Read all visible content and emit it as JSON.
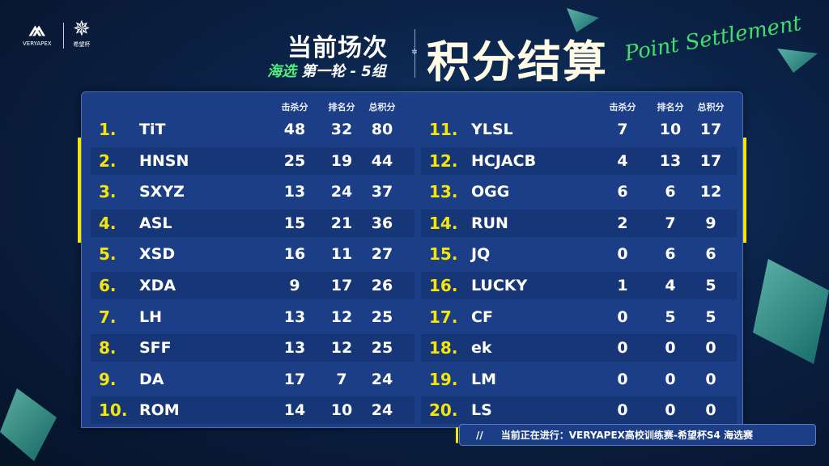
{
  "header": {
    "logo1": "VERYAPEX",
    "logo2": "希望杯",
    "title": "当前场次",
    "subtitle_green": "海选",
    "subtitle": "第一轮 - 5组",
    "main_title": "积分结算",
    "script_title": "Point Settlement"
  },
  "columns": [
    "击杀分",
    "排名分",
    "总积分"
  ],
  "left": [
    {
      "rank": "1.",
      "team": "TiT",
      "kill": "48",
      "place": "32",
      "total": "80"
    },
    {
      "rank": "2.",
      "team": "HNSN",
      "kill": "25",
      "place": "19",
      "total": "44"
    },
    {
      "rank": "3.",
      "team": "SXYZ",
      "kill": "13",
      "place": "24",
      "total": "37"
    },
    {
      "rank": "4.",
      "team": "ASL",
      "kill": "15",
      "place": "21",
      "total": "36"
    },
    {
      "rank": "5.",
      "team": "XSD",
      "kill": "16",
      "place": "11",
      "total": "27"
    },
    {
      "rank": "6.",
      "team": "XDA",
      "kill": "9",
      "place": "17",
      "total": "26"
    },
    {
      "rank": "7.",
      "team": "LH",
      "kill": "13",
      "place": "12",
      "total": "25"
    },
    {
      "rank": "8.",
      "team": "SFF",
      "kill": "13",
      "place": "12",
      "total": "25"
    },
    {
      "rank": "9.",
      "team": "DA",
      "kill": "17",
      "place": "7",
      "total": "24"
    },
    {
      "rank": "10.",
      "team": "ROM",
      "kill": "14",
      "place": "10",
      "total": "24"
    }
  ],
  "right": [
    {
      "rank": "11.",
      "team": "YLSL",
      "kill": "7",
      "place": "10",
      "total": "17"
    },
    {
      "rank": "12.",
      "team": "HCJACB",
      "kill": "4",
      "place": "13",
      "total": "17"
    },
    {
      "rank": "13.",
      "team": "OGG",
      "kill": "6",
      "place": "6",
      "total": "12"
    },
    {
      "rank": "14.",
      "team": "RUN",
      "kill": "2",
      "place": "7",
      "total": "9"
    },
    {
      "rank": "15.",
      "team": "JQ",
      "kill": "0",
      "place": "6",
      "total": "6"
    },
    {
      "rank": "16.",
      "team": "LUCKY",
      "kill": "1",
      "place": "4",
      "total": "5"
    },
    {
      "rank": "17.",
      "team": "CF",
      "kill": "0",
      "place": "5",
      "total": "5"
    },
    {
      "rank": "18.",
      "team": "ek",
      "kill": "0",
      "place": "0",
      "total": "0"
    },
    {
      "rank": "19.",
      "team": "LM",
      "kill": "0",
      "place": "0",
      "total": "0"
    },
    {
      "rank": "20.",
      "team": "LS",
      "kill": "0",
      "place": "0",
      "total": "0"
    }
  ],
  "ticker": {
    "prefix": "//",
    "text": "当前正在进行：VERYAPEX高校训练赛-希望杯S4  海选赛"
  },
  "colors": {
    "panel": "#1b3e86",
    "rank": "#f5e60a",
    "accent_green": "#4ef07a"
  }
}
